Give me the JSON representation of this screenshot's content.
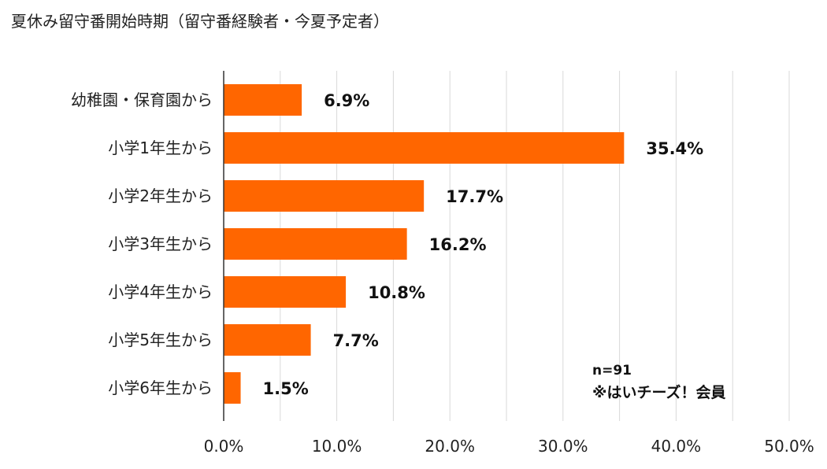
{
  "chart_data": {
    "type": "bar",
    "orientation": "horizontal",
    "title": "夏休み留守番開始時期（留守番経験者・今夏予定者）",
    "categories": [
      "幼稚園・保育園から",
      "小学1年生から",
      "小学2年生から",
      "小学3年生から",
      "小学4年生から",
      "小学5年生から",
      "小学6年生から"
    ],
    "values": [
      6.9,
      35.4,
      17.7,
      16.2,
      10.8,
      7.7,
      1.5
    ],
    "data_labels": [
      "6.9%",
      "35.4%",
      "17.7%",
      "16.2%",
      "10.8%",
      "7.7%",
      "1.5%"
    ],
    "xlim": [
      0,
      50
    ],
    "x_ticks": [
      0,
      10,
      20,
      30,
      40,
      50
    ],
    "x_tick_labels": [
      "0.0%",
      "10.0%",
      "20.0%",
      "30.0%",
      "40.0%",
      "50.0%"
    ],
    "grid": true,
    "bar_color": "#FF6600",
    "grid_color": "#D9D9D9",
    "axis_color": "#333333",
    "annotation": {
      "n": "n=91",
      "source": "※はいチーズ！会員"
    }
  }
}
